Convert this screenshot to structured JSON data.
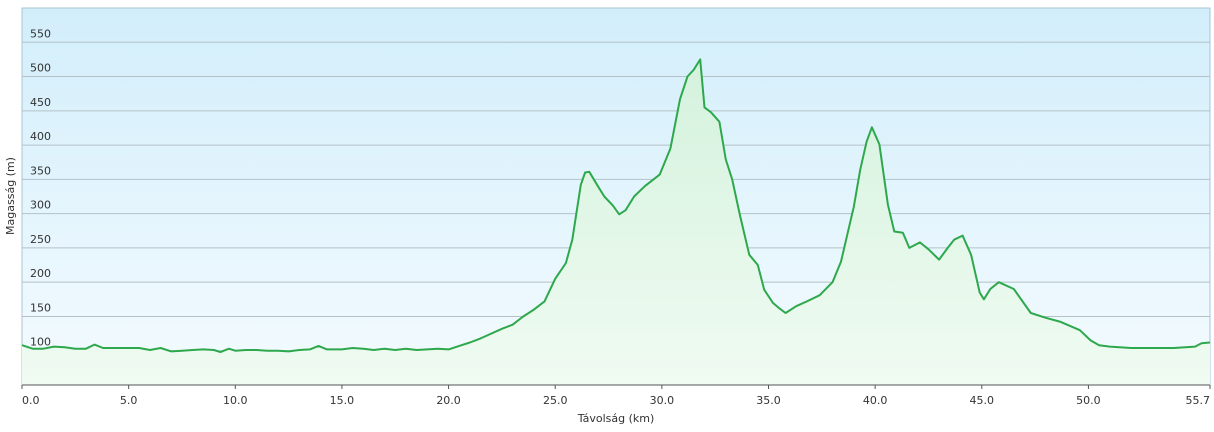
{
  "chart_data": {
    "type": "area",
    "x_label": "Távolság (km)",
    "y_label": "Magasság (m)",
    "x": [
      0,
      0.5,
      1,
      1.5,
      2,
      2.5,
      3,
      3.4,
      3.8,
      5,
      5.5,
      6,
      6.5,
      7,
      7.5,
      8,
      8.5,
      9,
      9.3,
      9.7,
      10,
      10.5,
      11,
      11.5,
      12,
      12.5,
      13,
      13.5,
      13.9,
      14.3,
      15,
      15.5,
      16,
      16.5,
      17,
      17.5,
      18,
      18.5,
      19,
      19.5,
      20,
      20.5,
      21,
      21.5,
      22,
      22.5,
      23,
      23.5,
      24,
      24.5,
      25,
      25.5,
      25.8,
      26.2,
      26.4,
      26.6,
      27,
      27.3,
      27.7,
      28,
      28.3,
      28.7,
      29.2,
      29.9,
      30.4,
      30.85,
      31.2,
      31.5,
      31.8,
      32.0,
      32.3,
      32.7,
      33.0,
      33.3,
      33.66,
      34.1,
      34.5,
      34.8,
      35.2,
      35.5,
      35.8,
      36.3,
      36.8,
      37.4,
      38.0,
      38.4,
      38.7,
      39.0,
      39.3,
      39.6,
      39.85,
      40.2,
      40.6,
      40.9,
      41.3,
      41.6,
      42.1,
      42.5,
      43.0,
      43.4,
      43.7,
      44.1,
      44.5,
      44.9,
      45.1,
      45.4,
      45.8,
      46.5,
      47.3,
      48.0,
      48.7,
      49.6,
      50.1,
      50.5,
      51,
      52,
      53,
      54,
      55,
      55.3,
      55.7
    ],
    "series": [
      {
        "name": "Magasság",
        "color": "#2ea84c",
        "values": [
          108,
          103,
          103,
          106,
          105,
          103,
          103,
          109,
          104,
          104,
          104,
          101,
          104,
          99,
          100,
          101,
          102,
          101,
          98,
          103,
          100,
          101,
          101,
          100,
          100,
          99,
          101,
          102,
          107,
          102,
          102,
          104,
          103,
          101,
          103,
          101,
          103,
          101,
          102,
          103,
          102,
          107,
          112,
          118,
          125,
          132,
          138,
          150,
          160,
          172,
          205,
          228,
          262,
          342,
          360,
          361,
          340,
          325,
          312,
          299,
          305,
          325,
          340,
          357,
          395,
          467,
          500,
          510,
          525,
          455,
          448,
          434,
          379,
          350,
          298,
          240,
          225,
          189,
          170,
          162,
          155,
          165,
          172,
          181,
          200,
          230,
          270,
          310,
          364,
          405,
          426,
          401,
          313,
          274,
          272,
          250,
          258,
          248,
          233,
          250,
          262,
          268,
          240,
          185,
          175,
          190,
          200,
          190,
          155,
          148,
          142,
          130,
          115,
          108,
          106,
          104,
          104,
          104,
          106,
          111,
          112
        ]
      }
    ],
    "xlim": [
      0,
      55.7
    ],
    "ylim": [
      50,
      600
    ],
    "xticks": [
      {
        "value": 0,
        "label": "0.0"
      },
      {
        "value": 5,
        "label": "5.0"
      },
      {
        "value": 10,
        "label": "10.0"
      },
      {
        "value": 15,
        "label": "15.0"
      },
      {
        "value": 20,
        "label": "20.0"
      },
      {
        "value": 25,
        "label": "25.0"
      },
      {
        "value": 30,
        "label": "30.0"
      },
      {
        "value": 35,
        "label": "35.0"
      },
      {
        "value": 40,
        "label": "40.0"
      },
      {
        "value": 45,
        "label": "45.0"
      },
      {
        "value": 50,
        "label": "50.0"
      },
      55.7
    ],
    "yticks": [
      100,
      150,
      200,
      250,
      300,
      350,
      400,
      450,
      500,
      550
    ],
    "grid": true
  }
}
